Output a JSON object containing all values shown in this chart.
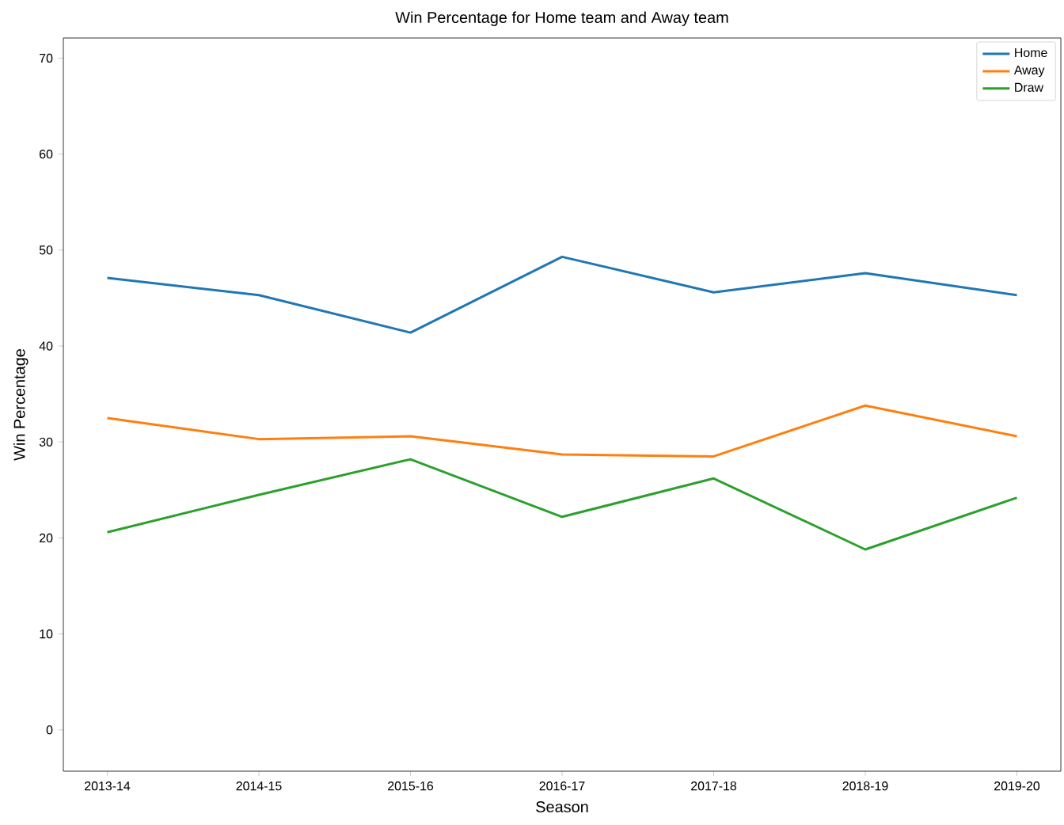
{
  "chart_data": {
    "type": "line",
    "title": "Win Percentage for Home team and Away team",
    "xlabel": "Season",
    "ylabel": "Win Percentage",
    "categories": [
      "2013-14",
      "2014-15",
      "2015-16",
      "2016-17",
      "2017-18",
      "2018-19",
      "2019-20"
    ],
    "series": [
      {
        "name": "Home",
        "color": "#1f77b4",
        "values": [
          47.1,
          45.3,
          41.4,
          49.3,
          45.6,
          47.6,
          45.3
        ]
      },
      {
        "name": "Away",
        "color": "#ff7f0e",
        "values": [
          32.5,
          30.3,
          30.6,
          28.7,
          28.5,
          33.8,
          30.6
        ]
      },
      {
        "name": "Draw",
        "color": "#2ca02c",
        "values": [
          20.6,
          24.5,
          28.2,
          22.2,
          26.2,
          18.8,
          24.2
        ]
      }
    ],
    "ylim": [
      -4.3,
      72.1
    ],
    "yticks": [
      0,
      10,
      20,
      30,
      40,
      50,
      60,
      70
    ],
    "grid": false,
    "legend": "top right"
  }
}
